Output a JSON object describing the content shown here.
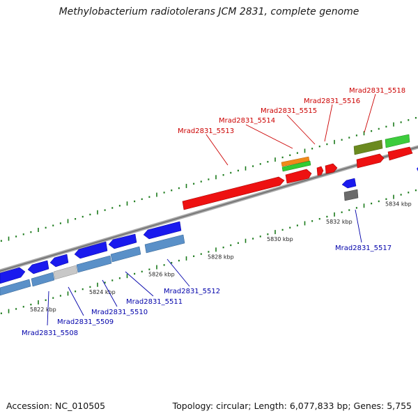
{
  "title": "Methylobacterium radiotolerans JCM 2831, complete genome",
  "footer": {
    "accession": "Accession: NC_010505",
    "summary": "Topology: circular; Length: 6,077,833 bp; Genes: 5,755"
  },
  "colors": {
    "backbone": "#8a8a8a",
    "top_label": "#cc0000",
    "bottom_label": "#0000aa",
    "tick_dots": "#1a7a1a"
  },
  "scale": {
    "unit": "kbp",
    "ticks": [
      {
        "kbp": 5822,
        "label": "5822 kbp"
      },
      {
        "kbp": 5824,
        "label": "5824 kbp"
      },
      {
        "kbp": 5826,
        "label": "5826 kbp"
      },
      {
        "kbp": 5828,
        "label": "5828 kbp"
      },
      {
        "kbp": 5830,
        "label": "5830 kbp"
      },
      {
        "kbp": 5832,
        "label": "5832 kbp"
      },
      {
        "kbp": 5834,
        "label": "5834 kbp"
      }
    ]
  },
  "gene_labels": {
    "top": [
      {
        "id": "Mrad2831_5513",
        "text": "Mrad2831_5513"
      },
      {
        "id": "Mrad2831_5514",
        "text": "Mrad2831_5514"
      },
      {
        "id": "Mrad2831_5515",
        "text": "Mrad2831_5515"
      },
      {
        "id": "Mrad2831_5516",
        "text": "Mrad2831_5516"
      },
      {
        "id": "Mrad2831_5518",
        "text": "Mrad2831_5518"
      }
    ],
    "bottom": [
      {
        "id": "Mrad2831_5508",
        "text": "Mrad2831_5508"
      },
      {
        "id": "Mrad2831_5509",
        "text": "Mrad2831_5509"
      },
      {
        "id": "Mrad2831_5510",
        "text": "Mrad2831_5510"
      },
      {
        "id": "Mrad2831_5511",
        "text": "Mrad2831_5511"
      },
      {
        "id": "Mrad2831_5512",
        "text": "Mrad2831_5512"
      },
      {
        "id": "Mrad2831_5517",
        "text": "Mrad2831_5517"
      }
    ]
  }
}
